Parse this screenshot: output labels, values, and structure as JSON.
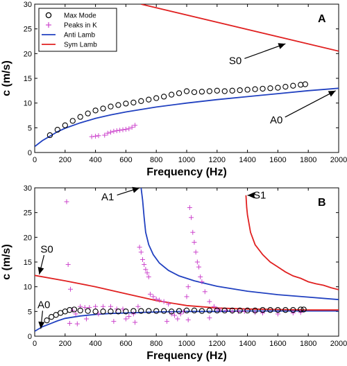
{
  "chart_data": [
    {
      "type": "scatter",
      "panel": "A",
      "xlabel": "Frequency (Hz)",
      "ylabel": "c (m/s)",
      "xlim": [
        0,
        2000
      ],
      "ylim": [
        0,
        30
      ],
      "xticks": [
        0,
        200,
        400,
        600,
        800,
        1000,
        1200,
        1400,
        1600,
        1800,
        2000
      ],
      "yticks": [
        0,
        5,
        10,
        15,
        20,
        25,
        30
      ],
      "legend": {
        "placement": "top-left",
        "entries": [
          {
            "label": "Max Mode",
            "marker": "circle",
            "color": "#000000"
          },
          {
            "label": "Peaks in K",
            "marker": "plus",
            "color": "#cc44cc"
          },
          {
            "label": "Anti Lamb",
            "marker": "line",
            "color": "#2040c0"
          },
          {
            "label": "Sym Lamb",
            "marker": "line",
            "color": "#e02020"
          }
        ]
      },
      "series": [
        {
          "name": "Max Mode",
          "kind": "circle",
          "color": "#000000",
          "x": [
            100,
            150,
            200,
            250,
            300,
            350,
            400,
            450,
            500,
            550,
            600,
            650,
            700,
            750,
            800,
            850,
            900,
            950,
            1000,
            1050,
            1100,
            1150,
            1200,
            1250,
            1300,
            1350,
            1400,
            1450,
            1500,
            1550,
            1600,
            1650,
            1700,
            1750,
            1780
          ],
          "y": [
            3.5,
            4.6,
            5.5,
            6.4,
            7.2,
            7.9,
            8.5,
            8.9,
            9.3,
            9.6,
            9.9,
            10.1,
            10.4,
            10.7,
            11.0,
            11.3,
            11.7,
            12.0,
            12.4,
            12.2,
            12.3,
            12.4,
            12.5,
            12.4,
            12.5,
            12.6,
            12.7,
            12.8,
            12.9,
            13.0,
            13.1,
            13.3,
            13.5,
            13.7,
            13.8
          ]
        },
        {
          "name": "Peaks in K",
          "kind": "plus",
          "color": "#cc44cc",
          "x": [
            375,
            400,
            420,
            460,
            480,
            500,
            520,
            540,
            560,
            580,
            600,
            620,
            640,
            660
          ],
          "y": [
            3.2,
            3.3,
            3.4,
            3.5,
            3.9,
            4.1,
            4.3,
            4.4,
            4.5,
            4.6,
            4.7,
            4.8,
            5.1,
            5.5
          ]
        },
        {
          "name": "Anti Lamb",
          "kind": "line",
          "color": "#2040c0",
          "x": [
            0,
            50,
            100,
            150,
            200,
            300,
            400,
            500,
            600,
            800,
            1000,
            1200,
            1400,
            1600,
            1800,
            2000
          ],
          "y": [
            1.2,
            2.4,
            3.3,
            4.2,
            4.9,
            6.0,
            6.9,
            7.6,
            8.2,
            9.2,
            10.0,
            10.7,
            11.3,
            11.9,
            12.5,
            13.0
          ]
        },
        {
          "name": "Sym Lamb",
          "kind": "line",
          "color": "#e02020",
          "x": [
            700,
            2000
          ],
          "y": [
            30.0,
            20.5
          ]
        }
      ],
      "annotations": [
        {
          "text": "S0",
          "target": [
            1650,
            22.0
          ],
          "label_at": [
            1320,
            18.6
          ]
        },
        {
          "text": "A0",
          "target": [
            1980,
            12.5
          ],
          "label_at": [
            1590,
            6.6
          ]
        }
      ],
      "letter": "A"
    },
    {
      "type": "scatter",
      "panel": "B",
      "xlabel": "Frequency (Hz)",
      "ylabel": "c (m/s)",
      "xlim": [
        0,
        2000
      ],
      "ylim": [
        0,
        30
      ],
      "xticks": [
        0,
        200,
        400,
        600,
        800,
        1000,
        1200,
        1400,
        1600,
        1800,
        2000
      ],
      "yticks": [
        0,
        5,
        10,
        15,
        20,
        25,
        30
      ],
      "series": [
        {
          "name": "Max Mode",
          "kind": "circle",
          "color": "#000000",
          "x": [
            80,
            110,
            140,
            170,
            200,
            230,
            260,
            300,
            350,
            400,
            450,
            500,
            550,
            600,
            650,
            700,
            750,
            800,
            850,
            900,
            950,
            1000,
            1050,
            1100,
            1150,
            1200,
            1250,
            1300,
            1350,
            1400,
            1450,
            1500,
            1550,
            1600,
            1650,
            1700,
            1750,
            1770
          ],
          "y": [
            3.2,
            3.9,
            4.3,
            4.7,
            5.0,
            5.3,
            5.4,
            5.2,
            5.1,
            5.0,
            5.0,
            5.0,
            5.0,
            5.0,
            5.1,
            5.1,
            5.1,
            5.1,
            5.1,
            5.0,
            5.1,
            5.2,
            5.2,
            5.1,
            5.2,
            5.2,
            5.2,
            5.2,
            5.2,
            5.2,
            5.2,
            5.3,
            5.3,
            5.3,
            5.3,
            5.3,
            5.4,
            5.4
          ]
        },
        {
          "name": "Peaks in K",
          "kind": "plus",
          "color": "#cc44cc",
          "x": [
            210,
            220,
            235,
            250,
            270,
            300,
            330,
            360,
            400,
            450,
            500,
            540,
            580,
            620,
            650,
            680,
            690,
            700,
            710,
            720,
            730,
            740,
            750,
            760,
            780,
            800,
            820,
            850,
            880,
            900,
            920,
            940,
            960,
            980,
            1000,
            1010,
            1020,
            1030,
            1040,
            1050,
            1060,
            1070,
            1080,
            1090,
            1100,
            1120,
            1150,
            1180,
            1200,
            1220,
            1260,
            1300,
            1340,
            1380,
            1450,
            1500,
            1600,
            1700,
            1750,
            230,
            280,
            340,
            420,
            520,
            600,
            660,
            870,
            1010,
            1150
          ],
          "y": [
            27.2,
            14.5,
            9.5,
            5.2,
            4.5,
            6.0,
            5.8,
            5.8,
            6.0,
            6.0,
            6.0,
            5.5,
            5.5,
            4.0,
            4.5,
            6.0,
            18.0,
            17.0,
            15.5,
            14.5,
            13.5,
            12.8,
            12.0,
            8.5,
            8.0,
            7.5,
            7.3,
            7.0,
            6.5,
            4.5,
            4.2,
            3.5,
            4.5,
            5.0,
            8.0,
            10.0,
            26.0,
            24.0,
            21.0,
            19.0,
            17.0,
            15.0,
            14.0,
            12.0,
            11.0,
            9.0,
            7.0,
            6.0,
            5.5,
            5.3,
            5.2,
            5.0,
            5.0,
            5.0,
            4.8,
            4.7,
            4.5,
            4.7,
            4.8,
            2.6,
            2.5,
            3.5,
            4.5,
            3.0,
            3.5,
            2.8,
            3.0,
            3.3,
            3.7
          ]
        },
        {
          "name": "Anti Lamb A0",
          "kind": "line",
          "color": "#2040c0",
          "x": [
            0,
            50,
            100,
            150,
            200,
            300,
            400,
            500,
            600,
            800,
            1000,
            1200,
            1400,
            1600,
            1800,
            2000
          ],
          "y": [
            1.0,
            1.9,
            2.5,
            3.1,
            3.6,
            4.1,
            4.4,
            4.6,
            4.7,
            4.9,
            5.0,
            5.0,
            5.1,
            5.1,
            5.1,
            5.1
          ]
        },
        {
          "name": "Anti Lamb A1",
          "kind": "line",
          "color": "#2040c0",
          "x": [
            700,
            710,
            720,
            730,
            750,
            780,
            820,
            880,
            950,
            1050,
            1200,
            1400,
            1600,
            1800,
            2000
          ],
          "y": [
            30.0,
            27.5,
            24.0,
            21.0,
            18.5,
            16.5,
            14.8,
            13.3,
            12.2,
            11.2,
            10.1,
            9.1,
            8.4,
            7.9,
            7.4
          ]
        },
        {
          "name": "Sym Lamb S0",
          "kind": "line",
          "color": "#e02020",
          "x": [
            0,
            200,
            400,
            600,
            800,
            1000,
            1200,
            1400,
            1600,
            1800,
            2000
          ],
          "y": [
            12.3,
            11.2,
            10.0,
            8.6,
            7.2,
            6.2,
            5.7,
            5.5,
            5.4,
            5.3,
            5.3
          ]
        },
        {
          "name": "Sym Lamb S1",
          "kind": "line",
          "color": "#e02020",
          "x": [
            1390,
            1395,
            1400,
            1420,
            1450,
            1500,
            1550,
            1600,
            1650,
            1700,
            1750,
            1800,
            1850,
            1900,
            1950,
            2000
          ],
          "y": [
            28.5,
            26.0,
            24.5,
            21.0,
            18.5,
            16.5,
            15.0,
            14.0,
            13.0,
            12.2,
            11.7,
            11.0,
            10.6,
            10.3,
            9.8,
            9.4
          ]
        }
      ],
      "annotations": [
        {
          "text": "A1",
          "target": [
            690,
            30.0
          ],
          "label_at": [
            480,
            28.2
          ]
        },
        {
          "text": "S1",
          "target": [
            1400,
            28.5
          ],
          "label_at": [
            1480,
            28.5
          ]
        },
        {
          "text": "S0",
          "target": [
            30,
            12.5
          ],
          "label_at": [
            80,
            17.6
          ]
        },
        {
          "text": "A0",
          "target": [
            40,
            1.5
          ],
          "label_at": [
            60,
            6.4
          ]
        }
      ],
      "letter": "B"
    }
  ]
}
